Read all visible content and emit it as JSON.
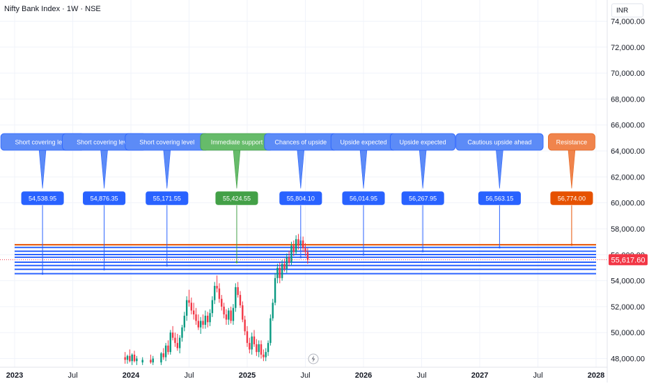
{
  "header": {
    "title": "Nifty Bank Index · 1W · NSE",
    "currency": "INR"
  },
  "chart_data": {
    "type": "candlestick",
    "title": "Nifty Bank Index · 1W · NSE",
    "ylim": [
      47500,
      75000
    ],
    "y_ticks": [
      48000,
      50000,
      52000,
      54000,
      56000,
      58000,
      60000,
      62000,
      64000,
      66000,
      68000,
      70000,
      72000,
      74000
    ],
    "y_tick_labels": [
      "48,000.00",
      "50,000.00",
      "52,000.00",
      "54,000.00",
      "56,000.00",
      "58,000.00",
      "60,000.00",
      "62,000.00",
      "64,000.00",
      "66,000.00",
      "68,000.00",
      "70,000.00",
      "72,000.00",
      "74,000.00"
    ],
    "x_ticks": [
      {
        "t": 2023.0,
        "label": "2023",
        "bold": true
      },
      {
        "t": 2023.5,
        "label": "Jul",
        "bold": false
      },
      {
        "t": 2024.0,
        "label": "2024",
        "bold": true
      },
      {
        "t": 2024.5,
        "label": "Jul",
        "bold": false
      },
      {
        "t": 2025.0,
        "label": "2025",
        "bold": true
      },
      {
        "t": 2025.5,
        "label": "Jul",
        "bold": false
      },
      {
        "t": 2026.0,
        "label": "2026",
        "bold": true
      },
      {
        "t": 2026.5,
        "label": "Jul",
        "bold": false
      },
      {
        "t": 2027.0,
        "label": "2027",
        "bold": true
      },
      {
        "t": 2027.5,
        "label": "Jul",
        "bold": false
      },
      {
        "t": 2028.0,
        "label": "2028",
        "bold": true
      }
    ],
    "current_price": 55617.6,
    "current_price_label": "55,617.60",
    "colors": {
      "up": "#089981",
      "down": "#f23645",
      "level": "#2962ff",
      "support": "#4caf50",
      "resistance": "#e65100",
      "grid": "#f0f3fa",
      "axis_text": "#131722",
      "price_tag": "#f23645"
    },
    "levels": [
      {
        "price": 54538.95,
        "value_label": "54,538.95",
        "note": "Short covering level",
        "t": 2023.24,
        "kind": "level"
      },
      {
        "price": 54876.35,
        "value_label": "54,876.35",
        "note": "Short covering level",
        "t": 2023.77,
        "kind": "level"
      },
      {
        "price": 55171.55,
        "value_label": "55,171.55",
        "note": "Short covering level",
        "t": 2024.31,
        "kind": "level"
      },
      {
        "price": 55424.55,
        "value_label": "55,424.55",
        "note": "Immediate support",
        "t": 2024.91,
        "kind": "support"
      },
      {
        "price": 55804.1,
        "value_label": "55,804.10",
        "note": "Chances of upside",
        "t": 2025.46,
        "kind": "level"
      },
      {
        "price": 56014.95,
        "value_label": "56,014.95",
        "note": "Upside expected",
        "t": 2026.0,
        "kind": "level"
      },
      {
        "price": 56267.95,
        "value_label": "56,267.95",
        "note": "Upside expected",
        "t": 2026.51,
        "kind": "level"
      },
      {
        "price": 56563.15,
        "value_label": "56,563.15",
        "note": "Cautious upside ahead",
        "t": 2027.17,
        "kind": "level"
      },
      {
        "price": 56774.0,
        "value_label": "56,774.00",
        "note": "Resistance",
        "t": 2027.79,
        "kind": "resistance"
      }
    ],
    "candles": [
      {
        "t": 2023.95,
        "o": 48100,
        "h": 48500,
        "l": 47600,
        "c": 47900
      },
      {
        "t": 2023.97,
        "o": 47900,
        "h": 48300,
        "l": 47600,
        "c": 48200
      },
      {
        "t": 2023.99,
        "o": 48200,
        "h": 48700,
        "l": 47700,
        "c": 47800
      },
      {
        "t": 2024.01,
        "o": 47800,
        "h": 48400,
        "l": 47500,
        "c": 48300
      },
      {
        "t": 2024.03,
        "o": 48300,
        "h": 48600,
        "l": 47700,
        "c": 47800
      },
      {
        "t": 2024.05,
        "o": 47800,
        "h": 48200,
        "l": 47500,
        "c": 48000
      },
      {
        "t": 2024.1,
        "o": 47700,
        "h": 48100,
        "l": 47500,
        "c": 47900
      },
      {
        "t": 2024.17,
        "o": 47900,
        "h": 48300,
        "l": 47600,
        "c": 47700
      },
      {
        "t": 2024.19,
        "o": 47700,
        "h": 48200,
        "l": 47500,
        "c": 48000
      },
      {
        "t": 2024.26,
        "o": 47700,
        "h": 48500,
        "l": 47500,
        "c": 48400
      },
      {
        "t": 2024.28,
        "o": 48400,
        "h": 48800,
        "l": 47900,
        "c": 48100
      },
      {
        "t": 2024.3,
        "o": 48100,
        "h": 49200,
        "l": 47800,
        "c": 49000
      },
      {
        "t": 2024.32,
        "o": 49000,
        "h": 49400,
        "l": 48300,
        "c": 48500
      },
      {
        "t": 2024.34,
        "o": 48500,
        "h": 50200,
        "l": 48300,
        "c": 50000
      },
      {
        "t": 2024.36,
        "o": 50000,
        "h": 50500,
        "l": 49400,
        "c": 49600
      },
      {
        "t": 2024.38,
        "o": 49600,
        "h": 50000,
        "l": 48900,
        "c": 49200
      },
      {
        "t": 2024.4,
        "o": 49200,
        "h": 49900,
        "l": 48600,
        "c": 48800
      },
      {
        "t": 2024.42,
        "o": 48800,
        "h": 49800,
        "l": 48400,
        "c": 49600
      },
      {
        "t": 2024.44,
        "o": 49600,
        "h": 50600,
        "l": 49300,
        "c": 50400
      },
      {
        "t": 2024.46,
        "o": 50400,
        "h": 51600,
        "l": 50100,
        "c": 51300
      },
      {
        "t": 2024.48,
        "o": 51300,
        "h": 52800,
        "l": 50900,
        "c": 52500
      },
      {
        "t": 2024.5,
        "o": 52500,
        "h": 53300,
        "l": 52000,
        "c": 52300
      },
      {
        "t": 2024.52,
        "o": 52300,
        "h": 52700,
        "l": 51400,
        "c": 51700
      },
      {
        "t": 2024.54,
        "o": 51700,
        "h": 52300,
        "l": 51000,
        "c": 51400
      },
      {
        "t": 2024.56,
        "o": 51400,
        "h": 51900,
        "l": 50600,
        "c": 50900
      },
      {
        "t": 2024.58,
        "o": 50900,
        "h": 51400,
        "l": 50200,
        "c": 50400
      },
      {
        "t": 2024.6,
        "o": 50400,
        "h": 51200,
        "l": 49900,
        "c": 50900
      },
      {
        "t": 2024.62,
        "o": 50900,
        "h": 51400,
        "l": 50300,
        "c": 50600
      },
      {
        "t": 2024.64,
        "o": 50600,
        "h": 51700,
        "l": 50300,
        "c": 51300
      },
      {
        "t": 2024.66,
        "o": 51300,
        "h": 51600,
        "l": 50400,
        "c": 50800
      },
      {
        "t": 2024.68,
        "o": 50800,
        "h": 51800,
        "l": 50500,
        "c": 51500
      },
      {
        "t": 2024.7,
        "o": 51500,
        "h": 52800,
        "l": 51200,
        "c": 52500
      },
      {
        "t": 2024.72,
        "o": 52500,
        "h": 53900,
        "l": 52200,
        "c": 53600
      },
      {
        "t": 2024.74,
        "o": 53600,
        "h": 54400,
        "l": 53100,
        "c": 53400
      },
      {
        "t": 2024.76,
        "o": 53400,
        "h": 53800,
        "l": 52300,
        "c": 52600
      },
      {
        "t": 2024.78,
        "o": 52600,
        "h": 52900,
        "l": 51700,
        "c": 52000
      },
      {
        "t": 2024.8,
        "o": 52000,
        "h": 52300,
        "l": 51100,
        "c": 51400
      },
      {
        "t": 2024.82,
        "o": 51400,
        "h": 51800,
        "l": 50600,
        "c": 51000
      },
      {
        "t": 2024.84,
        "o": 51000,
        "h": 51900,
        "l": 50600,
        "c": 51700
      },
      {
        "t": 2024.86,
        "o": 51700,
        "h": 52000,
        "l": 50700,
        "c": 50900
      },
      {
        "t": 2024.88,
        "o": 50900,
        "h": 52200,
        "l": 50600,
        "c": 51900
      },
      {
        "t": 2024.9,
        "o": 51900,
        "h": 53800,
        "l": 51600,
        "c": 53500
      },
      {
        "t": 2024.92,
        "o": 53500,
        "h": 53900,
        "l": 52700,
        "c": 52900
      },
      {
        "t": 2024.94,
        "o": 52900,
        "h": 53200,
        "l": 51900,
        "c": 52100
      },
      {
        "t": 2024.96,
        "o": 52100,
        "h": 52400,
        "l": 50800,
        "c": 51000
      },
      {
        "t": 2024.98,
        "o": 51000,
        "h": 51300,
        "l": 49800,
        "c": 50100
      },
      {
        "t": 2025.0,
        "o": 50100,
        "h": 50500,
        "l": 48900,
        "c": 49200
      },
      {
        "t": 2025.02,
        "o": 49200,
        "h": 49600,
        "l": 48400,
        "c": 48700
      },
      {
        "t": 2025.04,
        "o": 48700,
        "h": 50000,
        "l": 48300,
        "c": 49700
      },
      {
        "t": 2025.06,
        "o": 49700,
        "h": 50200,
        "l": 48900,
        "c": 49100
      },
      {
        "t": 2025.08,
        "o": 49100,
        "h": 49500,
        "l": 48200,
        "c": 48500
      },
      {
        "t": 2025.1,
        "o": 48500,
        "h": 49400,
        "l": 48100,
        "c": 49100
      },
      {
        "t": 2025.12,
        "o": 49100,
        "h": 49400,
        "l": 48000,
        "c": 48300
      },
      {
        "t": 2025.14,
        "o": 48300,
        "h": 48700,
        "l": 47800,
        "c": 48100
      },
      {
        "t": 2025.16,
        "o": 48100,
        "h": 48800,
        "l": 47800,
        "c": 48500
      },
      {
        "t": 2025.18,
        "o": 48500,
        "h": 49400,
        "l": 48200,
        "c": 49200
      },
      {
        "t": 2025.2,
        "o": 49200,
        "h": 51400,
        "l": 49000,
        "c": 51100
      },
      {
        "t": 2025.22,
        "o": 51100,
        "h": 52600,
        "l": 50900,
        "c": 52300
      },
      {
        "t": 2025.24,
        "o": 52300,
        "h": 54600,
        "l": 52100,
        "c": 54200
      },
      {
        "t": 2025.26,
        "o": 54200,
        "h": 55300,
        "l": 53800,
        "c": 55000
      },
      {
        "t": 2025.28,
        "o": 55000,
        "h": 55400,
        "l": 53800,
        "c": 54200
      },
      {
        "t": 2025.3,
        "o": 54200,
        "h": 55600,
        "l": 54000,
        "c": 55300
      },
      {
        "t": 2025.32,
        "o": 55300,
        "h": 55700,
        "l": 54700,
        "c": 54900
      },
      {
        "t": 2025.34,
        "o": 54900,
        "h": 56100,
        "l": 54600,
        "c": 55800
      },
      {
        "t": 2025.36,
        "o": 55800,
        "h": 56300,
        "l": 55100,
        "c": 55400
      },
      {
        "t": 2025.38,
        "o": 55400,
        "h": 57000,
        "l": 55200,
        "c": 56700
      },
      {
        "t": 2025.4,
        "o": 56700,
        "h": 57100,
        "l": 55900,
        "c": 56200
      },
      {
        "t": 2025.42,
        "o": 56200,
        "h": 57500,
        "l": 56000,
        "c": 57200
      },
      {
        "t": 2025.44,
        "o": 57200,
        "h": 57600,
        "l": 56400,
        "c": 56700
      },
      {
        "t": 2025.46,
        "o": 56700,
        "h": 57400,
        "l": 56300,
        "c": 57100
      },
      {
        "t": 2025.48,
        "o": 57100,
        "h": 57400,
        "l": 56200,
        "c": 56500
      },
      {
        "t": 2025.5,
        "o": 56500,
        "h": 56900,
        "l": 55900,
        "c": 56200
      },
      {
        "t": 2025.52,
        "o": 56200,
        "h": 56500,
        "l": 55300,
        "c": 55600
      }
    ]
  }
}
